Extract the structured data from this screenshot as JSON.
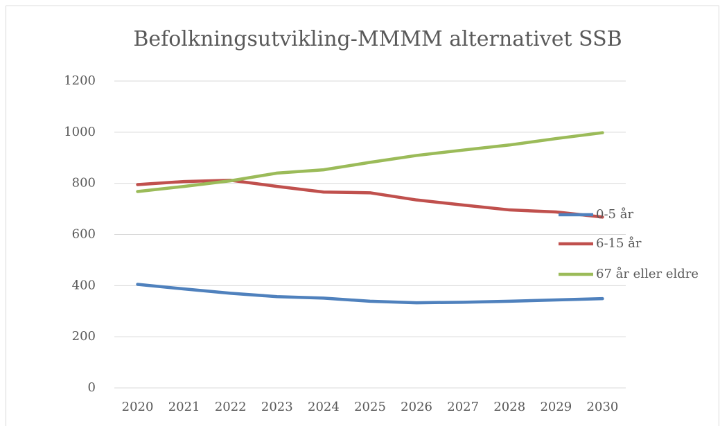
{
  "chart_data": {
    "type": "line",
    "title": "Befolkningsutvikling-MMMM alternativet SSB",
    "categories": [
      "2020",
      "2021",
      "2022",
      "2023",
      "2024",
      "2025",
      "2026",
      "2027",
      "2028",
      "2029",
      "2030"
    ],
    "series": [
      {
        "name": "0-5 år",
        "color": "#4f81bd",
        "values": [
          405,
          387,
          370,
          357,
          351,
          339,
          333,
          335,
          339,
          344,
          349
        ]
      },
      {
        "name": "6-15 år",
        "color": "#c0504d",
        "values": [
          795,
          807,
          812,
          788,
          766,
          763,
          735,
          715,
          696,
          688,
          668
        ]
      },
      {
        "name": "67 år eller eldre",
        "color": "#9bbb59",
        "values": [
          768,
          788,
          810,
          840,
          853,
          882,
          909,
          930,
          950,
          975,
          998
        ]
      }
    ],
    "ylim": [
      0,
      1200
    ],
    "yticks": [
      0,
      200,
      400,
      600,
      800,
      1000,
      1200
    ],
    "grid": true,
    "legend": "right"
  }
}
